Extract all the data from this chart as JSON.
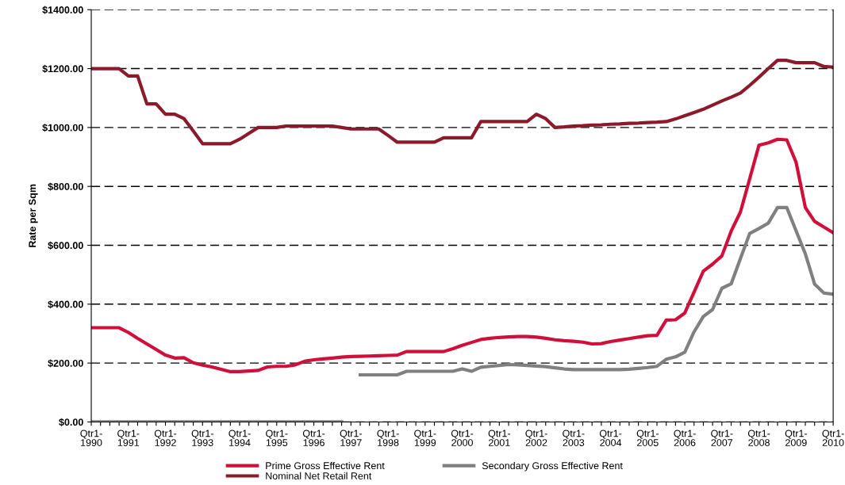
{
  "chart_data": {
    "type": "line",
    "ylabel": "Rate per Sqm",
    "categories": [
      "Qtr1-\n1990",
      null,
      null,
      null,
      "Qtr1-\n1991",
      null,
      null,
      null,
      "Qtr1-\n1992",
      null,
      null,
      null,
      "Qtr1-\n1993",
      null,
      null,
      null,
      "Qtr1-\n1994",
      null,
      null,
      null,
      "Qtr1-\n1995",
      null,
      null,
      null,
      "Qtr1-\n1996",
      null,
      null,
      null,
      "Qtr1-\n1997",
      null,
      null,
      null,
      "Qtr1-\n1998",
      null,
      null,
      null,
      "Qtr1-\n1999",
      null,
      null,
      null,
      "Qtr1-\n2000",
      null,
      null,
      null,
      "Qtr1-\n2001",
      null,
      null,
      null,
      "Qtr1-\n2002",
      null,
      null,
      null,
      "Qtr1-\n2003",
      null,
      null,
      null,
      "Qtr1-\n2004",
      null,
      null,
      null,
      "Qtr1-\n2005",
      null,
      null,
      null,
      "Qtr1-\n2006",
      null,
      null,
      null,
      "Qtr1-\n2007",
      null,
      null,
      null,
      "Qtr1-\n2008",
      null,
      null,
      null,
      "Qtr1-\n2009",
      null,
      null,
      null,
      "Qtr1-\n2010"
    ],
    "ylim": [
      0,
      1400
    ],
    "yticks": [
      {
        "value": 0,
        "label": "$0.00"
      },
      {
        "value": 200,
        "label": "$200.00"
      },
      {
        "value": 400,
        "label": "$400.00"
      },
      {
        "value": 600,
        "label": "$600.00"
      },
      {
        "value": 800,
        "label": "$800.00"
      },
      {
        "value": 1000,
        "label": "$1000.00"
      },
      {
        "value": 1200,
        "label": "$1200.00"
      },
      {
        "value": 1400,
        "label": "$1400.00"
      }
    ],
    "grid": "y",
    "legend": "bottom",
    "marker": "none",
    "line_style": "solid",
    "series": [
      {
        "name": "Prime Gross Effective Rent",
        "color": "#d0103a",
        "values": [
          320,
          320,
          320,
          320,
          304,
          284,
          265,
          246,
          227,
          217,
          218,
          201,
          193,
          187,
          179,
          171,
          171,
          173,
          175,
          187,
          189,
          189,
          194,
          206,
          211,
          214,
          217,
          220,
          222,
          223,
          224,
          225,
          226,
          227,
          239,
          239,
          239,
          239,
          239,
          249,
          260,
          270,
          280,
          284,
          287,
          289,
          290,
          290,
          288,
          284,
          279,
          276,
          274,
          271,
          265,
          266,
          273,
          278,
          283,
          288,
          293,
          294,
          346,
          347,
          370,
          441,
          512,
          536,
          564,
          648,
          713,
          826,
          940,
          948,
          960,
          958,
          882,
          728,
          681,
          662,
          643
        ]
      },
      {
        "name": "Secondary Gross Effective Rent",
        "color": "#808080",
        "values": [
          0,
          0,
          0,
          0,
          0,
          0,
          0,
          0,
          0,
          0,
          0,
          0,
          0,
          0,
          0,
          0,
          0,
          0,
          0,
          0,
          0,
          0,
          0,
          0,
          0,
          0,
          0,
          0,
          null,
          160,
          160,
          160,
          160,
          160,
          172,
          172,
          172,
          172,
          172,
          172,
          180,
          172,
          186,
          189,
          192,
          195,
          194,
          192,
          190,
          188,
          184,
          180,
          178,
          178,
          178,
          178,
          178,
          178,
          179,
          182,
          185,
          189,
          213,
          221,
          237,
          306,
          358,
          382,
          454,
          469,
          555,
          640,
          657,
          675,
          728,
          728,
          649,
          571,
          468,
          438,
          434
        ]
      },
      {
        "name": "Nominal Net Retail Rent",
        "color": "#8b1a2b",
        "values": [
          1200,
          1200,
          1200,
          1200,
          1175,
          1175,
          1080,
          1080,
          1045,
          1045,
          1030,
          988,
          945,
          945,
          945,
          945,
          960,
          980,
          1000,
          1000,
          1000,
          1005,
          1005,
          1005,
          1005,
          1005,
          1005,
          1000,
          995,
          995,
          995,
          995,
          973,
          950,
          950,
          950,
          950,
          950,
          965,
          965,
          965,
          965,
          1020,
          1020,
          1020,
          1020,
          1020,
          1020,
          1045,
          1030,
          1000,
          1002,
          1005,
          1006,
          1008,
          1009,
          1011,
          1012,
          1014,
          1015,
          1017,
          1018,
          1020,
          1029,
          1040,
          1051,
          1062,
          1076,
          1090,
          1103,
          1117,
          1143,
          1171,
          1200,
          1228,
          1228,
          1220,
          1220,
          1220,
          1207,
          1205
        ]
      }
    ]
  }
}
